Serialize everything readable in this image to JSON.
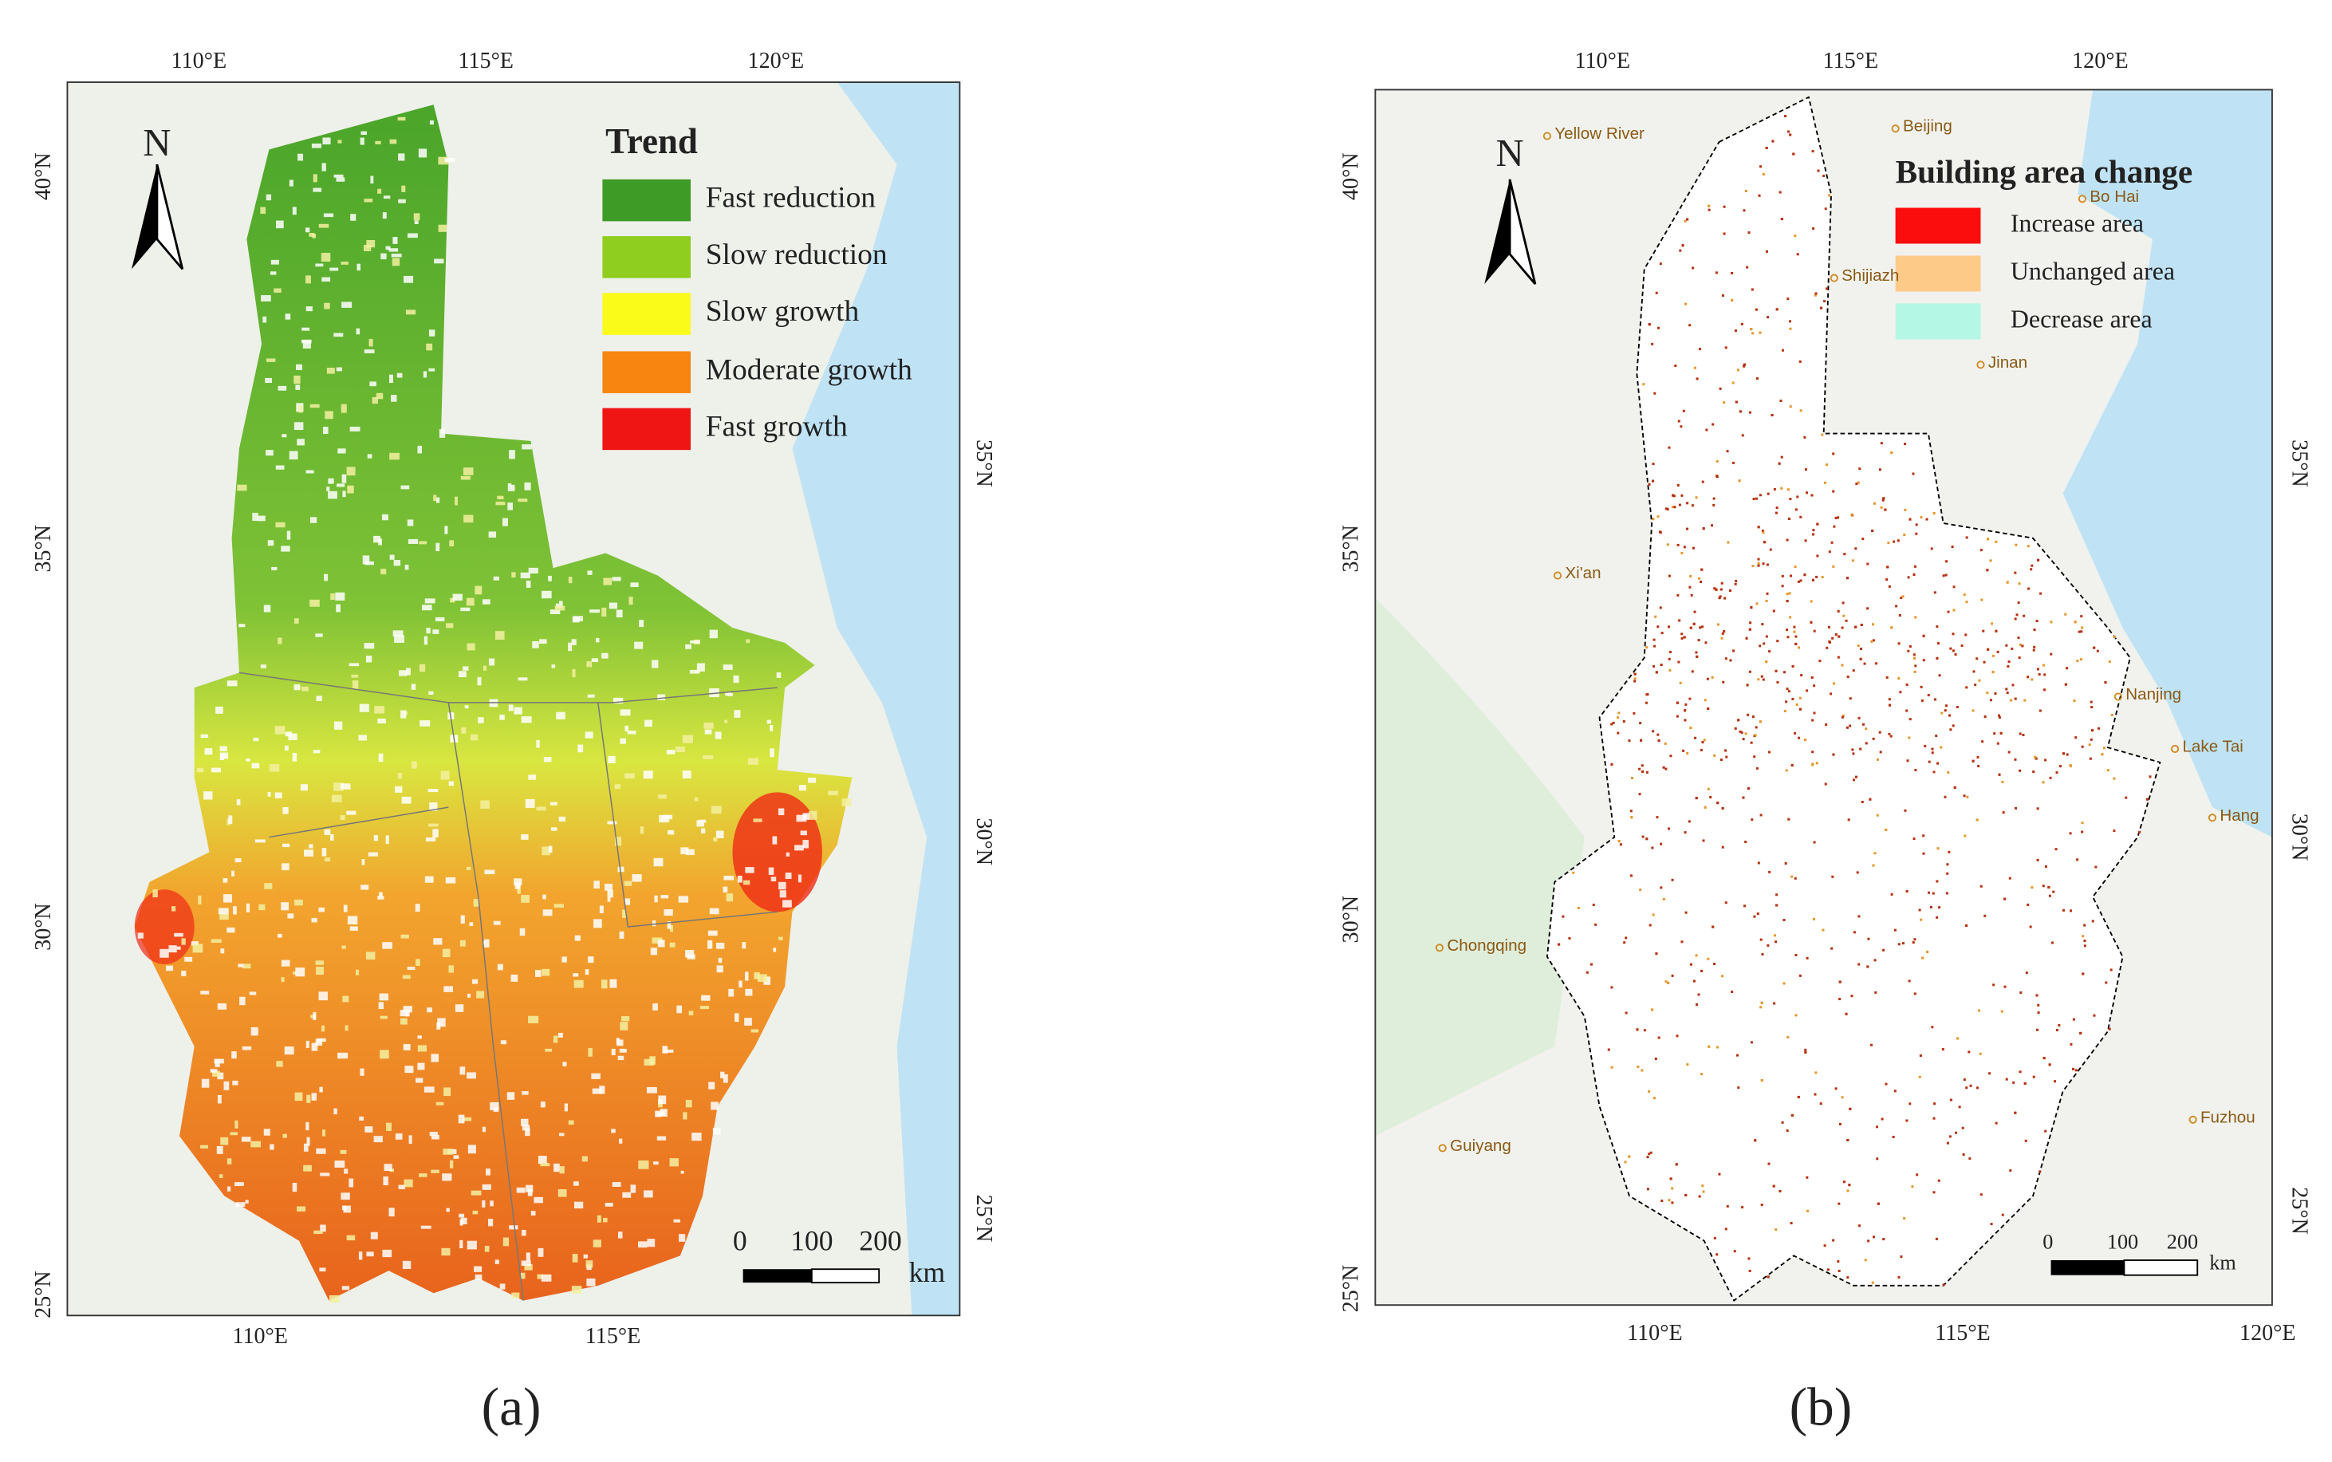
{
  "panels": [
    {
      "label": "(a)",
      "north": "N",
      "top_ticks": [
        "110°E",
        "115°E",
        "120°E"
      ],
      "bottom_ticks": [
        "110°E",
        "115°E"
      ],
      "left_ticks": [
        "40°N",
        "35°N",
        "30°N",
        "25°N"
      ],
      "right_ticks": [
        "35°N",
        "30°N",
        "25°N"
      ],
      "legend": {
        "title": "Trend",
        "items": [
          {
            "name": "Fast reduction",
            "color": "#3d9b26"
          },
          {
            "name": "Slow reduction",
            "color": "#8fcd1e"
          },
          {
            "name": "Slow growth",
            "color": "#fbfb1a"
          },
          {
            "name": "Moderate growth",
            "color": "#f7850f"
          },
          {
            "name": "Fast growth",
            "color": "#ef1515"
          }
        ]
      },
      "scale": {
        "labels": [
          "0",
          "100",
          "200"
        ],
        "unit": "km"
      }
    },
    {
      "label": "(b)",
      "north": "N",
      "top_ticks": [
        "110°E",
        "115°E",
        "120°E"
      ],
      "bottom_ticks": [
        "110°E",
        "115°E",
        "120°E"
      ],
      "left_ticks": [
        "40°N",
        "35°N",
        "30°N",
        "25°N"
      ],
      "right_ticks": [
        "35°N",
        "30°N",
        "25°N"
      ],
      "legend": {
        "title": "Building area change",
        "items": [
          {
            "name": "Increase area",
            "color": "#fc0d0d"
          },
          {
            "name": "Unchanged area",
            "color": "#fdca87"
          },
          {
            "name": "Decrease area",
            "color": "#b4f7e4"
          }
        ]
      },
      "scale": {
        "labels": [
          "0",
          "100",
          "200"
        ],
        "unit": "km"
      },
      "places": [
        "Beijing",
        "Yellow River",
        "Bo Hai",
        "Shijiazh",
        "Jinan",
        "Xi'an",
        "Nanjing",
        "Lake Tai",
        "Hang",
        "Chongqing",
        "Guiyang",
        "Fuzhou"
      ]
    }
  ]
}
